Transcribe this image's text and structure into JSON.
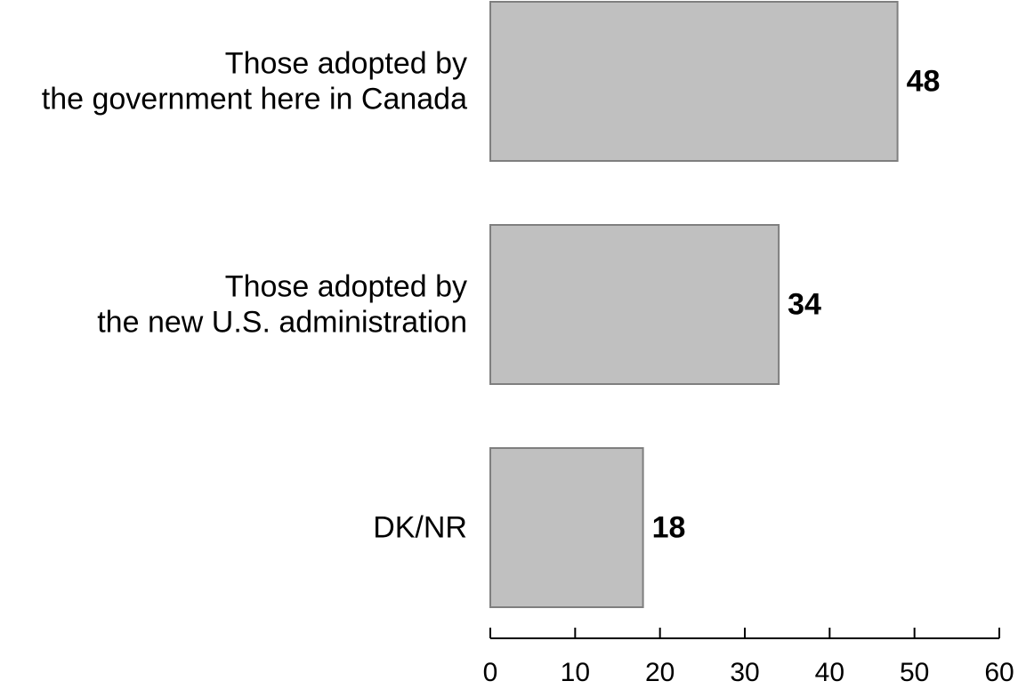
{
  "chart_data": {
    "type": "bar",
    "orientation": "horizontal",
    "categories": [
      [
        "Those adopted by",
        "the government here in Canada"
      ],
      [
        "Those adopted by",
        "the new U.S. administration"
      ],
      [
        "DK/NR"
      ]
    ],
    "values": [
      48,
      34,
      18
    ],
    "value_labels": [
      "48",
      "34",
      "18"
    ],
    "xlim": [
      0,
      60
    ],
    "x_ticks": [
      0,
      10,
      20,
      30,
      40,
      50,
      60
    ],
    "x_tick_labels": [
      "0",
      "10",
      "20",
      "30",
      "40",
      "50",
      "60"
    ],
    "title": "",
    "xlabel": "",
    "ylabel": "",
    "grid": false,
    "legend": "none",
    "colors": {
      "bar_fill": "#c0c0c0",
      "bar_stroke": "#7f7f7f",
      "axis": "#000000",
      "text": "#000000"
    }
  }
}
